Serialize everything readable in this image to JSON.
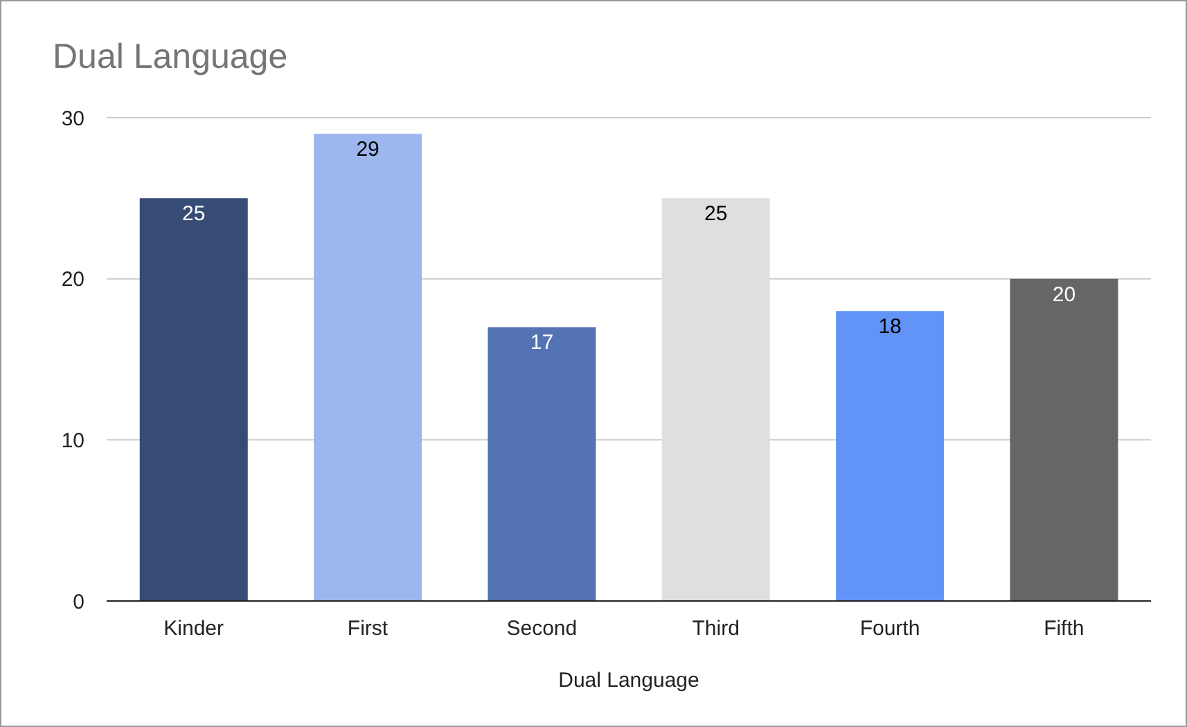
{
  "chart_data": {
    "type": "bar",
    "title": "Dual Language",
    "xlabel": "Dual Language",
    "categories": [
      "Kinder",
      "First",
      "Second",
      "Third",
      "Fourth",
      "Fifth"
    ],
    "values": [
      25,
      29,
      17,
      25,
      18,
      20
    ],
    "colors": [
      "#364c75",
      "#9db6ee",
      "#5473b5",
      "#e0dfe0",
      "#6294f8",
      "#666666"
    ],
    "ylim": [
      0,
      30
    ],
    "yticks": [
      0,
      10,
      20,
      30
    ],
    "grid": "y",
    "data_labels": true
  }
}
